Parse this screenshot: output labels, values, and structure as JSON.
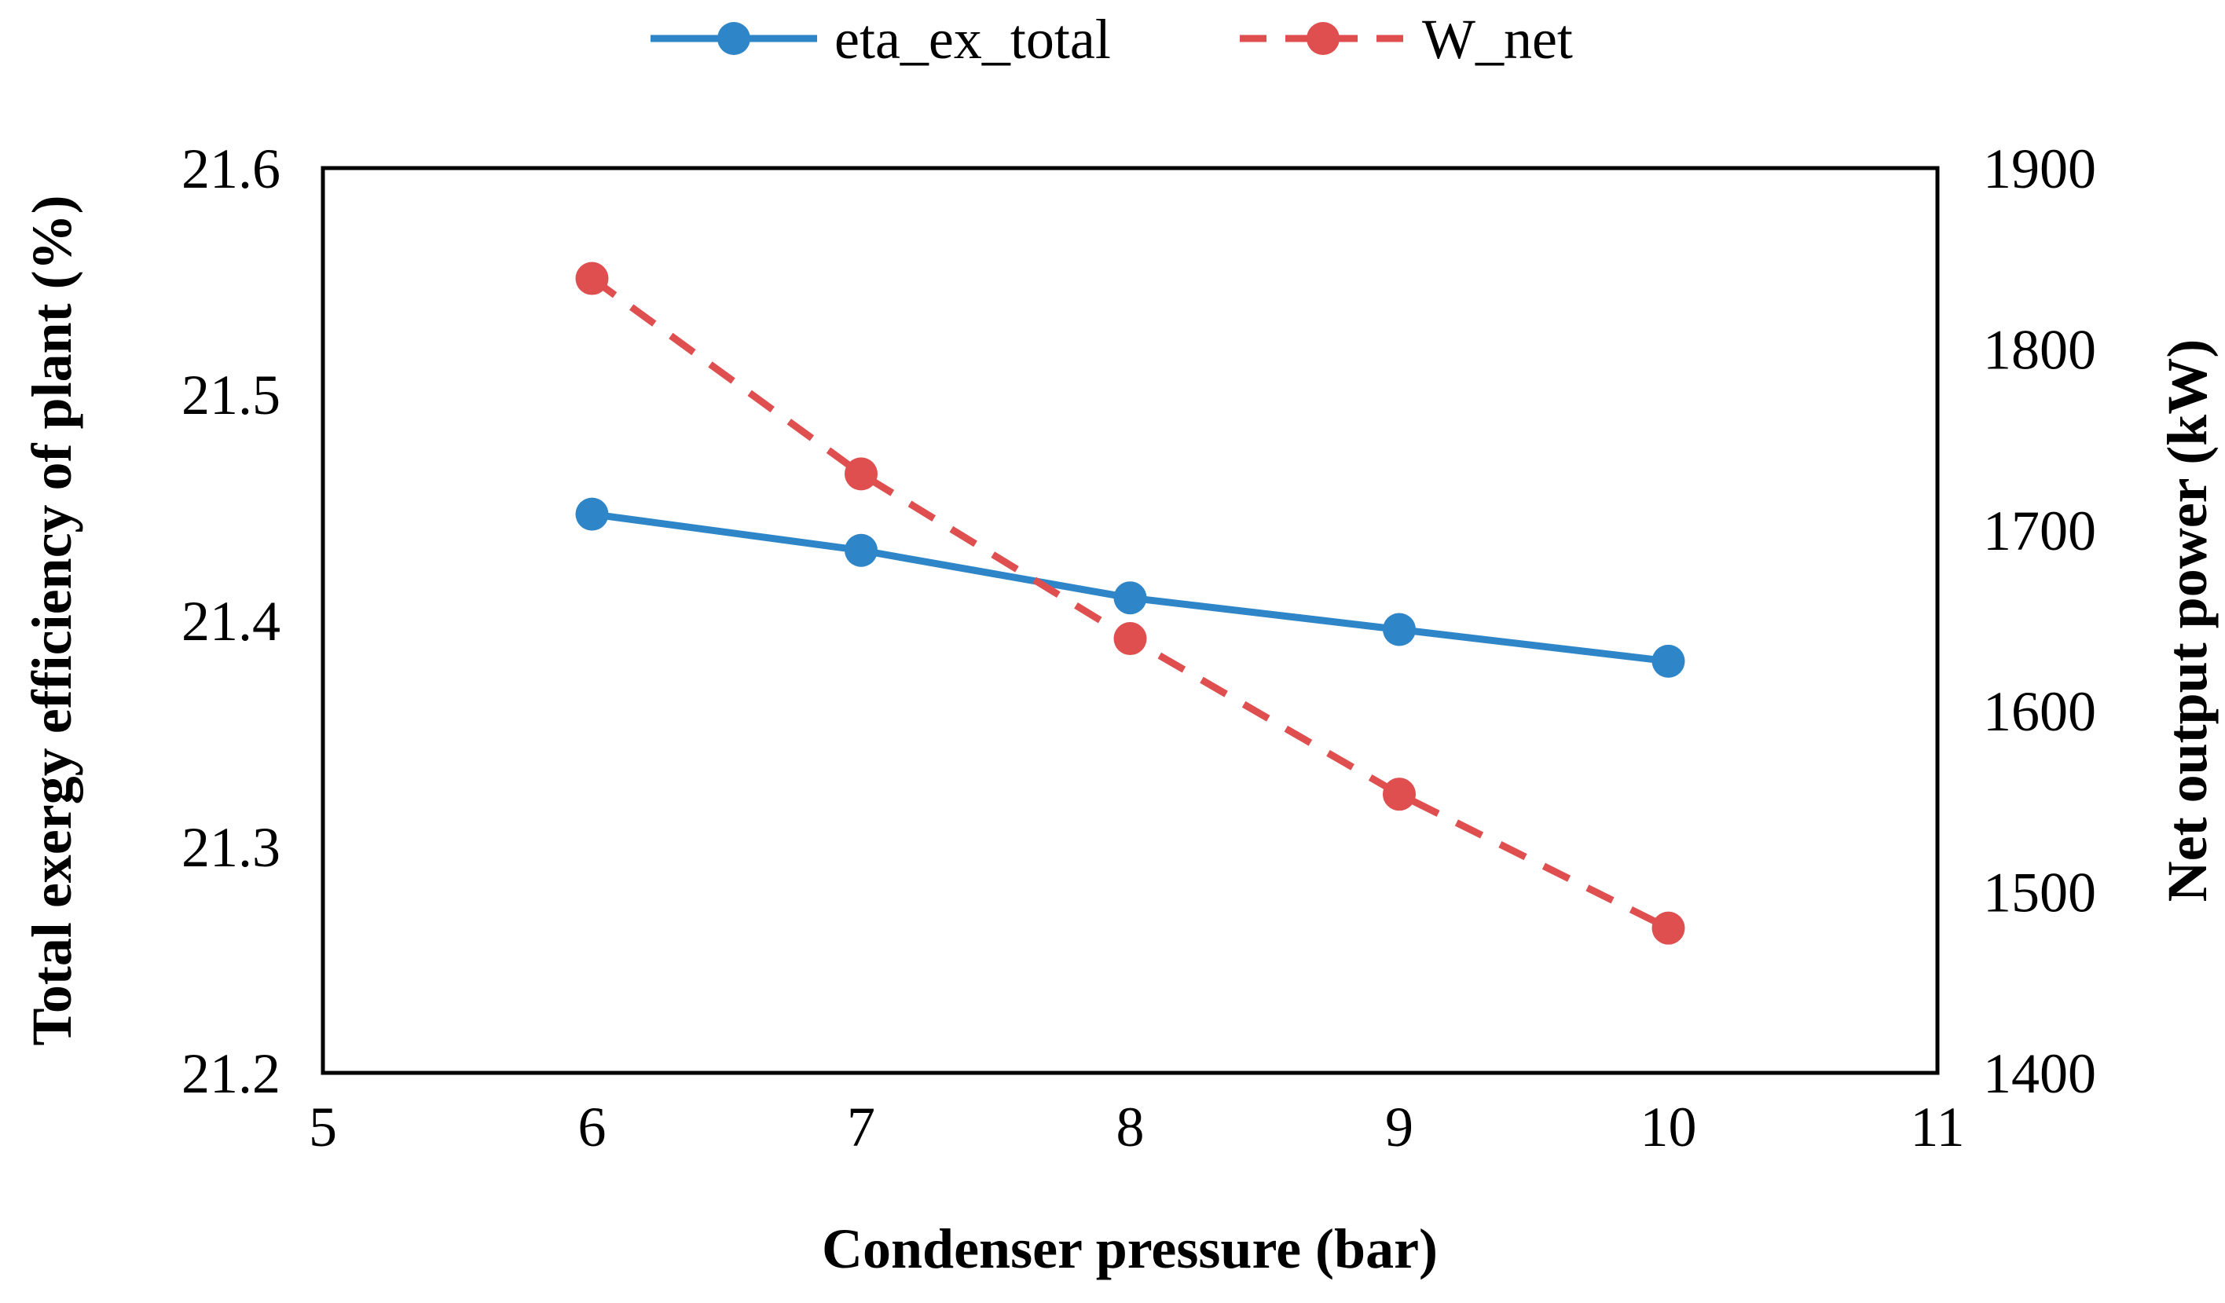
{
  "chart_data": {
    "type": "line",
    "title": "",
    "xlabel": "Condenser pressure (bar)",
    "ylabel": "Total exergy efficiency of plant (%)",
    "y2label": "Net output power  (kW)",
    "xlim": [
      5,
      11
    ],
    "ylim": [
      21.2,
      21.6
    ],
    "y2lim": [
      1400,
      1900
    ],
    "x_ticks": [
      5,
      6,
      7,
      8,
      9,
      10,
      11
    ],
    "y_ticks": [
      21.2,
      21.3,
      21.4,
      21.5,
      21.6
    ],
    "y2_ticks": [
      1400,
      1500,
      1600,
      1700,
      1800,
      1900
    ],
    "x_tick_labels": [
      "5",
      "6",
      "7",
      "8",
      "9",
      "10",
      "11"
    ],
    "y_tick_labels": [
      "21.2",
      "21.3",
      "21.4",
      "21.5",
      "21.6"
    ],
    "y2_tick_labels": [
      "1400",
      "1500",
      "1600",
      "1700",
      "1800",
      "1900"
    ],
    "grid": false,
    "legend_position": "top",
    "x": [
      6,
      7,
      8,
      9,
      10
    ],
    "series": [
      {
        "name": "eta_ex_total",
        "axis": "left",
        "style": "solid",
        "color": "#2e86c8",
        "values": [
          21.447,
          21.431,
          21.41,
          21.396,
          21.382
        ]
      },
      {
        "name": "W_net",
        "axis": "right",
        "style": "dashed",
        "color": "#df4f4f",
        "values": [
          1839,
          1731,
          1640,
          1554,
          1480
        ]
      }
    ]
  }
}
